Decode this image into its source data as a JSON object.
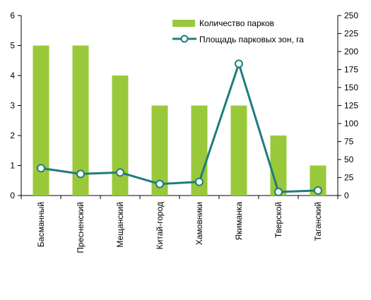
{
  "chart_data": {
    "type": "bar",
    "categories": [
      "Басманный",
      "Пресненский",
      "Мещанский",
      "Китай-город",
      "Хамовники",
      "Якиманка",
      "Тверской",
      "Таганский"
    ],
    "series": [
      {
        "name": "Количество парков",
        "type": "bar",
        "axis": "left",
        "color": "#99c93a",
        "values": [
          5,
          5,
          4,
          3,
          3,
          3,
          2,
          1
        ]
      },
      {
        "name": "Площадь парковых зон, га",
        "type": "line",
        "axis": "right",
        "color": "#1f7c7e",
        "values": [
          38,
          30,
          32,
          16,
          19,
          183,
          5,
          7
        ]
      }
    ],
    "y_left": {
      "min": 0,
      "max": 6,
      "ticks": [
        "0",
        "1",
        "2",
        "3",
        "4",
        "5",
        "6"
      ]
    },
    "y_right": {
      "min": 0,
      "max": 250,
      "ticks": [
        "0",
        "25",
        "50",
        "75",
        "100",
        "125",
        "150",
        "175",
        "200",
        "225",
        "250"
      ]
    },
    "legend_position": "top-right",
    "grid": false
  }
}
